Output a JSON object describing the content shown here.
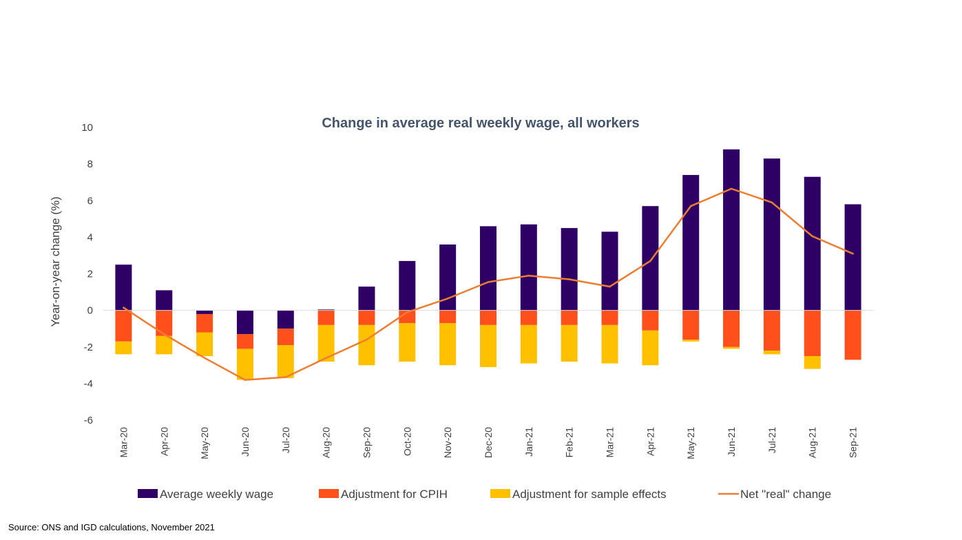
{
  "chart_data": {
    "type": "bar",
    "stacked": true,
    "title": "Change in average real weekly wage, all workers",
    "xlabel": "",
    "ylabel": "Year-on-year change (%)",
    "ylim": [
      -6,
      10
    ],
    "yticks": [
      10,
      8,
      6,
      4,
      2,
      0,
      -2,
      -4,
      -6
    ],
    "grid": false,
    "legend_position": "bottom",
    "categories": [
      "Mar-20",
      "Apr-20",
      "May-20",
      "Jun-20",
      "Jul-20",
      "Aug-20",
      "Sep-20",
      "Oct-20",
      "Nov-20",
      "Dec-20",
      "Jan-21",
      "Feb-21",
      "Mar-21",
      "Apr-21",
      "May-21",
      "Jun-21",
      "Jul-21",
      "Aug-21",
      "Sep-21"
    ],
    "series": [
      {
        "name": "Average weekly wage",
        "kind": "bar",
        "color": "#2e0066",
        "values": [
          2.5,
          1.1,
          -0.2,
          -1.3,
          -1.0,
          0.05,
          1.3,
          2.7,
          3.6,
          4.6,
          4.7,
          4.5,
          4.3,
          5.7,
          7.4,
          8.8,
          8.3,
          7.3,
          5.8
        ]
      },
      {
        "name": "Adjustment for CPIH",
        "kind": "bar",
        "color": "#ff4f1a",
        "values": [
          -1.7,
          -1.4,
          -1.0,
          -0.8,
          -0.9,
          -0.8,
          -0.8,
          -0.7,
          -0.7,
          -0.8,
          -0.8,
          -0.8,
          -0.8,
          -1.1,
          -1.6,
          -2.0,
          -2.2,
          -2.5,
          -2.7
        ]
      },
      {
        "name": "Adjustment for sample effects",
        "kind": "bar",
        "color": "#ffc000",
        "values": [
          -0.7,
          -1.0,
          -1.3,
          -1.7,
          -1.8,
          -2.0,
          -2.2,
          -2.1,
          -2.3,
          -2.3,
          -2.1,
          -2.0,
          -2.1,
          -1.9,
          -0.1,
          -0.1,
          -0.2,
          -0.7,
          0.0
        ]
      },
      {
        "name": "Net \"real\" change",
        "kind": "line",
        "color": "#ed7d31",
        "values": [
          0.15,
          -1.3,
          -2.6,
          -3.8,
          -3.65,
          -2.6,
          -1.6,
          -0.1,
          0.65,
          1.55,
          1.9,
          1.7,
          1.3,
          2.7,
          5.7,
          6.65,
          5.9,
          4.05,
          3.1
        ]
      }
    ]
  },
  "source": "Source: ONS and IGD calculations, November 2021"
}
